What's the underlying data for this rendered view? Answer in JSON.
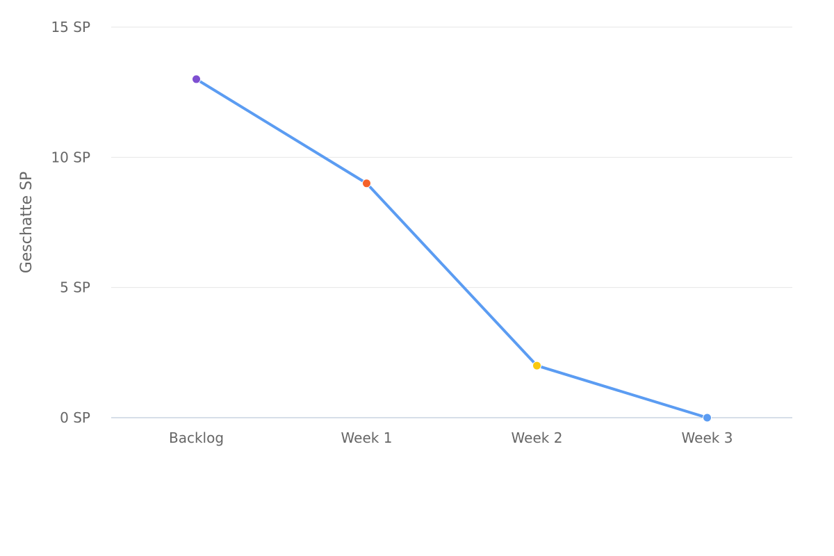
{
  "chart_data": {
    "type": "line",
    "categories": [
      "Backlog",
      "Week 1",
      "Week 2",
      "Week 3"
    ],
    "series": [
      {
        "values": [
          13,
          9,
          2,
          0
        ],
        "line_color": "#5b9cf2",
        "point_colors": [
          "#7e4fd1",
          "#f5622a",
          "#f9c80e",
          "#5b9cf2"
        ]
      }
    ],
    "ylabel": "Geschatte SP",
    "ylim": [
      0,
      15
    ],
    "yticks": [
      0,
      5,
      10,
      15
    ],
    "ytick_labels": [
      "0 SP",
      "5 SP",
      "10 SP",
      "15 SP"
    ],
    "grid": true,
    "legend": "none"
  }
}
